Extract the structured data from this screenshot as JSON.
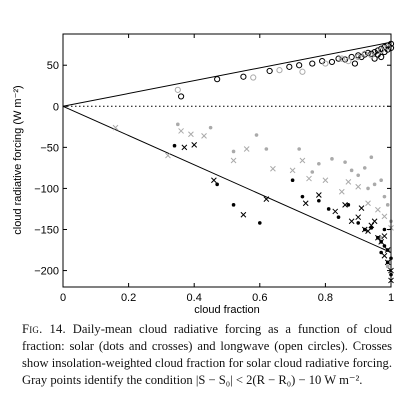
{
  "chart_data": {
    "type": "scatter",
    "xlabel": "cloud fraction",
    "ylabel": "cloud radiative forcing (W m⁻²)",
    "xlim": [
      0,
      1
    ],
    "ylim": [
      -220,
      88
    ],
    "x_ticks": [
      0,
      0.2,
      0.4,
      0.6,
      0.8,
      1
    ],
    "x_tick_labels": [
      "0",
      "0.2",
      "0.4",
      "0.6",
      "0.8",
      "1"
    ],
    "y_ticks": [
      50,
      0,
      -50,
      -100,
      -150,
      -200
    ],
    "y_tick_labels": [
      "50",
      "0",
      "−50",
      "−100",
      "−150",
      "−200"
    ],
    "zero_line": "dotted",
    "fit_lines": [
      {
        "x": [
          0,
          1
        ],
        "y": [
          0,
          78
        ]
      },
      {
        "x": [
          0,
          1
        ],
        "y": [
          0,
          -178
        ]
      }
    ],
    "series": [
      {
        "marker": "circle-open",
        "color": "#000000",
        "x": [
          0.36,
          0.47,
          0.55,
          0.63,
          0.69,
          0.72,
          0.76,
          0.79,
          0.82,
          0.84,
          0.86,
          0.88,
          0.9,
          0.91,
          0.92,
          0.93,
          0.94,
          0.95,
          0.96,
          0.96,
          0.97,
          0.98,
          0.98,
          0.99,
          0.99,
          1.0,
          1.0,
          0.97,
          0.95,
          0.89
        ],
        "y": [
          12,
          33,
          36,
          43,
          48,
          50,
          52,
          55,
          54,
          58,
          57,
          60,
          62,
          60,
          63,
          65,
          64,
          66,
          68,
          63,
          70,
          66,
          72,
          69,
          74,
          76,
          71,
          60,
          58,
          52
        ]
      },
      {
        "marker": "circle-open",
        "color": "#aaaaaa",
        "x": [
          0.35,
          0.58,
          0.66,
          0.73,
          0.8,
          0.85,
          0.87,
          0.9,
          0.92,
          0.94,
          0.97,
          0.99
        ],
        "y": [
          20,
          35,
          44,
          42,
          52,
          58,
          55,
          60,
          64,
          62,
          68,
          72
        ]
      },
      {
        "marker": "dot",
        "color": "#aaaaaa",
        "x": [
          0.35,
          0.45,
          0.52,
          0.59,
          0.62,
          0.72,
          0.78,
          0.82,
          0.88,
          0.9,
          0.92,
          0.95,
          0.97,
          0.98,
          0.99,
          1.0,
          0.76,
          0.94,
          0.99,
          0.97,
          0.86,
          0.93,
          0.99
        ],
        "y": [
          -22,
          -26,
          -55,
          -35,
          -52,
          -52,
          -70,
          -64,
          -78,
          -84,
          -75,
          -95,
          -90,
          -110,
          -120,
          -140,
          -80,
          -62,
          -175,
          -160,
          -68,
          -100,
          -195
        ]
      },
      {
        "marker": "dot",
        "color": "#000000",
        "x": [
          0.34,
          0.47,
          0.52,
          0.6,
          0.7,
          0.73,
          0.78,
          0.81,
          0.84,
          0.87,
          0.9,
          0.92,
          0.94,
          0.96,
          0.97,
          0.98,
          0.99,
          1.0,
          0.99,
          0.98,
          1.0,
          0.97
        ],
        "y": [
          -48,
          -95,
          -120,
          -142,
          -90,
          -110,
          -115,
          -125,
          -135,
          -120,
          -142,
          -150,
          -148,
          -160,
          -165,
          -170,
          -175,
          -185,
          -190,
          -150,
          -205,
          -178
        ]
      },
      {
        "marker": "cross",
        "color": "#aaaaaa",
        "x": [
          0.16,
          0.32,
          0.36,
          0.39,
          0.43,
          0.52,
          0.56,
          0.64,
          0.7,
          0.75,
          0.8,
          0.85,
          0.9,
          0.93,
          0.96,
          0.98,
          1.0,
          0.87,
          0.73
        ],
        "y": [
          -26,
          -60,
          -30,
          -34,
          -36,
          -66,
          -52,
          -76,
          -78,
          -88,
          -90,
          -104,
          -98,
          -118,
          -126,
          -134,
          -148,
          -92,
          -66
        ]
      },
      {
        "marker": "cross",
        "color": "#000000",
        "x": [
          0.37,
          0.4,
          0.46,
          0.55,
          0.62,
          0.74,
          0.78,
          0.83,
          0.86,
          0.88,
          0.9,
          0.92,
          0.93,
          0.95,
          0.96,
          0.97,
          0.98,
          0.98,
          0.99,
          0.99,
          1.0,
          1.0,
          0.94,
          0.91
        ],
        "y": [
          -50,
          -47,
          -90,
          -132,
          -113,
          -118,
          -108,
          -128,
          -120,
          -140,
          -135,
          -150,
          -152,
          -140,
          -160,
          -165,
          -158,
          -182,
          -175,
          -190,
          -200,
          -212,
          -145,
          -124
        ]
      }
    ]
  },
  "caption": {
    "label": "Fig. 14.",
    "text": "Daily-mean cloud radiative forcing as a function of cloud fraction: solar (dots and crosses) and longwave (open circles). Crosses show insolation-weighted cloud fraction for solar cloud radiative forcing. Gray points identify the condition |S − S₀| < 2(R − R₀) − 10 W m⁻²."
  }
}
